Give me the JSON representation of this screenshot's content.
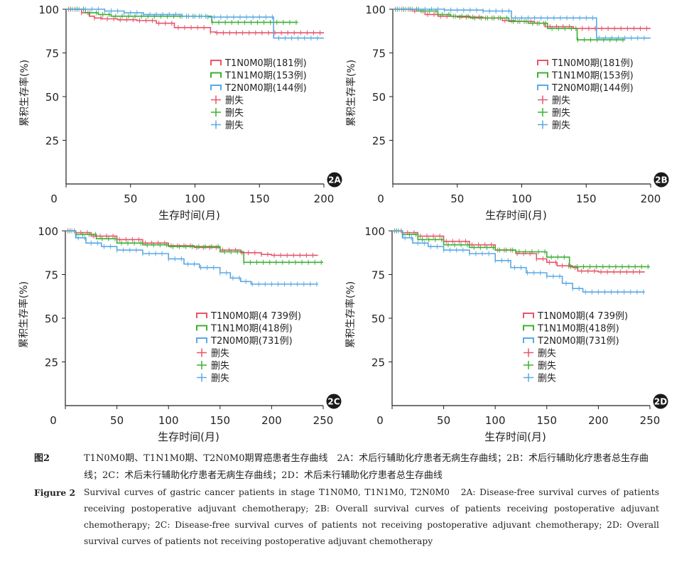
{
  "figure": {
    "cn_label": "图2",
    "cn_text": "T1N0M0期、T1N1M0期、T2N0M0期胃癌患者生存曲线　2A：术后行辅助化疗患者无病生存曲线；2B：术后行辅助化疗患者总生存曲线；2C：术后未行辅助化疗患者无病生存曲线；2D：术后未行辅助化疗患者总生存曲线",
    "en_label": "Figure 2",
    "en_text": "Survival curves of gastric cancer patients in stage T1N0M0, T1N1M0, T2N0M0　2A: Disease-free survival curves of patients receiving postoperative adjuvant chemotherapy; 2B: Overall survival curves of patients receiving postoperative adjuvant chemotherapy; 2C: Disease-free survival curves of patients not receiving postoperative adjuvant chemotherapy; 2D: Overall survival curves of patients not receiving postoperative adjuvant chemotherapy"
  },
  "colors": {
    "T1N0M0": "#e8546b",
    "T1N1M0": "#3cb034",
    "T2N0M0": "#5aa9e6",
    "axis": "#231f20",
    "badge": "#1a1a1a"
  },
  "chart_data": [
    {
      "type": "line",
      "panel": "2A",
      "xlabel": "生存时间(月)",
      "ylabel": "累积生存率(%)",
      "xlim": [
        0,
        200
      ],
      "ylim": [
        0,
        100
      ],
      "xticks": [
        0,
        50,
        100,
        150,
        200
      ],
      "yticks": [
        25,
        50,
        75,
        100
      ],
      "legend_position": "middle-right",
      "censor_label": "删失",
      "series": [
        {
          "name": "T1N0M0期(181例)",
          "key": "T1N0M0",
          "x": [
            0,
            12,
            18,
            22,
            28,
            40,
            55,
            70,
            84,
            100,
            112,
            116,
            140,
            160,
            200
          ],
          "y": [
            100,
            98,
            96,
            95,
            94.5,
            94,
            93.5,
            92,
            89.5,
            89.5,
            87,
            86.5,
            86.5,
            86.5,
            86.5
          ]
        },
        {
          "name": "T1N1M0期(153例)",
          "key": "T1N1M0",
          "x": [
            0,
            15,
            25,
            35,
            60,
            90,
            110,
            113,
            125,
            180
          ],
          "y": [
            100,
            98,
            97,
            96,
            96,
            96,
            96,
            92.5,
            92.5,
            92.5
          ]
        },
        {
          "name": "T2N0M0期(144例)",
          "key": "T2N0M0",
          "x": [
            0,
            30,
            45,
            60,
            90,
            110,
            158,
            161,
            200
          ],
          "y": [
            100,
            99,
            98,
            97,
            96,
            95.5,
            95.5,
            83.5,
            83.5
          ]
        }
      ]
    },
    {
      "type": "line",
      "panel": "2B",
      "xlabel": "生存时间(月)",
      "ylabel": "累积生存率(%)",
      "xlim": [
        0,
        200
      ],
      "ylim": [
        0,
        100
      ],
      "xticks": [
        0,
        50,
        100,
        150,
        200
      ],
      "yticks": [
        25,
        50,
        75,
        100
      ],
      "legend_position": "middle-right",
      "censor_label": "删失",
      "series": [
        {
          "name": "T1N0M0期(181例)",
          "key": "T1N0M0",
          "x": [
            0,
            15,
            25,
            35,
            50,
            70,
            85,
            95,
            110,
            118,
            140,
            200
          ],
          "y": [
            100,
            99,
            97,
            96,
            95.5,
            95,
            93.5,
            93,
            92,
            90,
            89,
            89
          ]
        },
        {
          "name": "T1N1M0期(153例)",
          "key": "T1N1M0",
          "x": [
            0,
            20,
            35,
            45,
            60,
            90,
            105,
            117,
            120,
            140,
            143,
            180
          ],
          "y": [
            100,
            99,
            97,
            96,
            95,
            93,
            92,
            92,
            89,
            89,
            82.5,
            82.5
          ]
        },
        {
          "name": "T2N0M0期(144例)",
          "key": "T2N0M0",
          "x": [
            0,
            40,
            70,
            91,
            92,
            157,
            158,
            200
          ],
          "y": [
            100,
            99.5,
            99,
            99,
            95,
            95,
            83.5,
            83.5
          ]
        }
      ]
    },
    {
      "type": "line",
      "panel": "2C",
      "xlabel": "生存时间(月)",
      "ylabel": "累积生存率(%)",
      "xlim": [
        0,
        250
      ],
      "ylim": [
        0,
        100
      ],
      "xticks": [
        0,
        50,
        100,
        150,
        200,
        250
      ],
      "yticks": [
        25,
        50,
        75,
        100
      ],
      "legend_position": "bottom-right",
      "censor_label": "删失",
      "series": [
        {
          "name": "T1N0M0期(4 739例)",
          "key": "T1N0M0",
          "x": [
            0,
            10,
            25,
            50,
            75,
            100,
            125,
            150,
            170,
            190,
            200,
            245
          ],
          "y": [
            100,
            99,
            97,
            95,
            93,
            91.5,
            90.5,
            89,
            87.5,
            86.5,
            86,
            86
          ]
        },
        {
          "name": "T1N1M0期(418例)",
          "key": "T1N1M0",
          "x": [
            0,
            10,
            30,
            50,
            75,
            100,
            125,
            145,
            150,
            172,
            173,
            250
          ],
          "y": [
            100,
            98,
            95.5,
            93,
            92,
            91,
            91,
            91,
            88,
            88,
            82,
            82
          ]
        },
        {
          "name": "T2N0M0期(731例)",
          "key": "T2N0M0",
          "x": [
            0,
            10,
            20,
            35,
            50,
            75,
            100,
            115,
            130,
            150,
            160,
            170,
            180,
            200,
            245
          ],
          "y": [
            100,
            96,
            93,
            91,
            89,
            87,
            84,
            81,
            79,
            76,
            73,
            71,
            69.5,
            69.5,
            69.5
          ]
        }
      ]
    },
    {
      "type": "line",
      "panel": "2D",
      "xlabel": "生存时间(月)",
      "ylabel": "累积生存率(%)",
      "xlim": [
        0,
        250
      ],
      "ylim": [
        0,
        100
      ],
      "xticks": [
        0,
        50,
        100,
        150,
        200,
        250
      ],
      "yticks": [
        25,
        50,
        75,
        100
      ],
      "legend_position": "bottom-right",
      "censor_label": "删失",
      "series": [
        {
          "name": "T1N0M0期(4 739例)",
          "key": "T1N0M0",
          "x": [
            0,
            10,
            25,
            50,
            75,
            100,
            120,
            140,
            150,
            160,
            175,
            180,
            200,
            245
          ],
          "y": [
            100,
            99,
            97,
            94,
            92,
            89,
            87,
            84,
            82,
            80,
            79,
            77,
            76.5,
            76.5
          ]
        },
        {
          "name": "T1N1M0期(418例)",
          "key": "T1N1M0",
          "x": [
            0,
            10,
            25,
            50,
            75,
            100,
            120,
            150,
            170,
            172,
            250
          ],
          "y": [
            100,
            98,
            95,
            92,
            90.5,
            89,
            88,
            85,
            85,
            79.5,
            79.5
          ]
        },
        {
          "name": "T2N0M0期(731例)",
          "key": "T2N0M0",
          "x": [
            0,
            10,
            20,
            35,
            50,
            75,
            100,
            115,
            130,
            150,
            165,
            175,
            185,
            200,
            245
          ],
          "y": [
            100,
            96,
            93,
            91,
            89,
            87,
            83,
            79,
            76,
            74,
            70,
            67,
            65,
            65,
            65
          ]
        }
      ]
    }
  ]
}
